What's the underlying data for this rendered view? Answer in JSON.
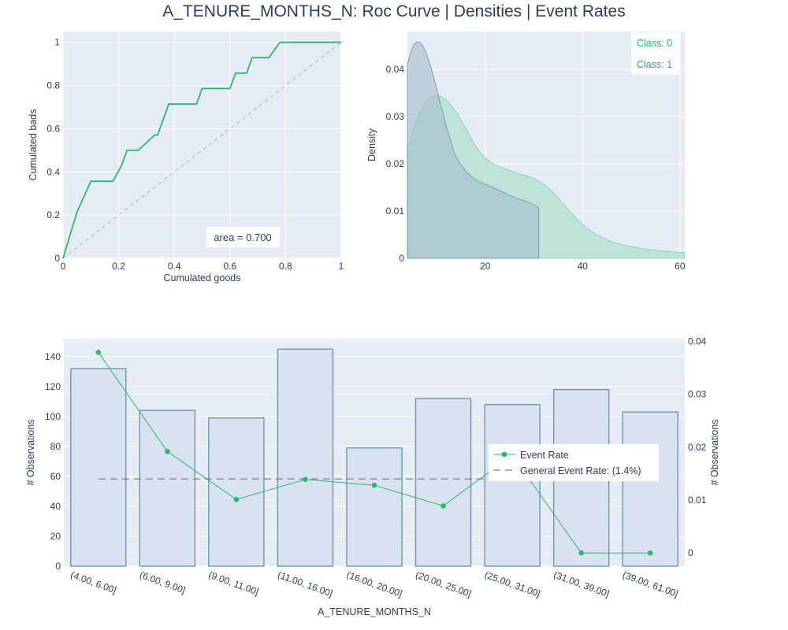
{
  "title": "A_TENURE_MONTHS_N: Roc Curve | Densities | Event Rates",
  "colors": {
    "plot_bg": "#e5ecf6",
    "grid": "#ffffff",
    "text": "#2a3f5f",
    "green": "#2cb66f",
    "blue": "#5c86a5",
    "class0_fill": "#b6e3d1",
    "class1_fill": "#a6bccb",
    "bar_fill": "#d9e2f0",
    "bar_edge": "#6e96b0",
    "dash": "#666666"
  },
  "chart_data": [
    {
      "type": "line",
      "name": "roc",
      "xlabel": "Cumulated goods",
      "ylabel": "Cumulated bads",
      "xlim": [
        0,
        1
      ],
      "ylim": [
        0,
        1.05
      ],
      "xticks": [
        0,
        0.2,
        0.4,
        0.6,
        0.8,
        1
      ],
      "xtick_labels": [
        "0",
        "0.2",
        "0.4",
        "0.6",
        "0.8",
        "1"
      ],
      "yticks": [
        0,
        0.2,
        0.4,
        0.6,
        0.8,
        1
      ],
      "ytick_labels": [
        "0",
        "0.2",
        "0.4",
        "0.6",
        "0.8",
        "1"
      ],
      "x": [
        0,
        0.05,
        0.1,
        0.18,
        0.21,
        0.23,
        0.27,
        0.33,
        0.34,
        0.38,
        0.48,
        0.5,
        0.6,
        0.62,
        0.66,
        0.68,
        0.74,
        0.78,
        1.0
      ],
      "y": [
        0,
        0.214,
        0.357,
        0.357,
        0.429,
        0.5,
        0.5,
        0.571,
        0.571,
        0.714,
        0.714,
        0.786,
        0.786,
        0.857,
        0.857,
        0.929,
        0.929,
        1.0,
        1.0
      ],
      "diagonal": true,
      "annotation": "area = 0.700"
    },
    {
      "type": "area",
      "name": "densities",
      "ylabel": "Density",
      "xlim": [
        4,
        61
      ],
      "ylim": [
        0,
        0.048
      ],
      "xticks": [
        20,
        40,
        60
      ],
      "xtick_labels": [
        "20",
        "40",
        "60"
      ],
      "yticks": [
        0,
        0.01,
        0.02,
        0.03,
        0.04
      ],
      "ytick_labels": [
        "0",
        "0.01",
        "0.02",
        "0.03",
        "0.04"
      ],
      "legend": "top-right",
      "series": [
        {
          "name": "Class: 0",
          "x": [
            4,
            6,
            8,
            10,
            12,
            14,
            16,
            18,
            20,
            22,
            24,
            26,
            28,
            30,
            32,
            34,
            36,
            38,
            40,
            42,
            44,
            46,
            48,
            50,
            52,
            54,
            56,
            58,
            61
          ],
          "y": [
            0.0235,
            0.0295,
            0.0335,
            0.0345,
            0.0335,
            0.031,
            0.0275,
            0.0238,
            0.0212,
            0.0198,
            0.019,
            0.0182,
            0.0176,
            0.0169,
            0.0157,
            0.0139,
            0.0116,
            0.0092,
            0.0072,
            0.0056,
            0.0044,
            0.0035,
            0.0029,
            0.0025,
            0.0021,
            0.0018,
            0.0016,
            0.0014,
            0.0012
          ]
        },
        {
          "name": "Class: 1",
          "x": [
            4,
            5,
            6,
            7,
            8,
            9,
            10,
            11,
            12,
            13,
            14,
            16,
            18,
            20,
            22,
            24,
            26,
            28,
            30,
            31
          ],
          "y": [
            0.041,
            0.0445,
            0.0458,
            0.0452,
            0.043,
            0.0398,
            0.036,
            0.032,
            0.028,
            0.0245,
            0.0215,
            0.0185,
            0.0167,
            0.0157,
            0.0148,
            0.0138,
            0.0129,
            0.0122,
            0.0113,
            0.0107
          ]
        }
      ]
    },
    {
      "type": "bar",
      "name": "event_rates",
      "xlabel": "A_TENURE_MONTHS_N",
      "ylabel": "# Observations",
      "y2label": "# Observations",
      "categories": [
        "(4.00, 6.00]",
        "(6.00, 9.00]",
        "(9.00, 11.00]",
        "(11.00, 16.00]",
        "(16.00, 20.00]",
        "(20.00, 25.00]",
        "(25.00, 31.00]",
        "(31.00, 39.00]",
        "(39.00, 61.00]"
      ],
      "values": [
        132,
        104,
        99,
        145,
        79,
        112,
        108,
        118,
        103
      ],
      "ylim": [
        0,
        152
      ],
      "yticks": [
        0,
        20,
        40,
        60,
        80,
        100,
        120,
        140
      ],
      "ytick_labels": [
        "0",
        "20",
        "40",
        "60",
        "80",
        "100",
        "120",
        "140"
      ],
      "y2lim": [
        -0.0025,
        0.0405
      ],
      "y2ticks": [
        0,
        0.01,
        0.02,
        0.03,
        0.04
      ],
      "y2tick_labels": [
        "0",
        "0.01",
        "0.02",
        "0.03",
        "0.04"
      ],
      "event_rate": [
        0.0379,
        0.0192,
        0.0101,
        0.0139,
        0.0128,
        0.0089,
        0.0185,
        0.0,
        0.0
      ],
      "general_event_rate": 0.014,
      "legend": "center-right",
      "legend_items": [
        "Event Rate",
        "General Event Rate: (1.4%)"
      ]
    }
  ]
}
